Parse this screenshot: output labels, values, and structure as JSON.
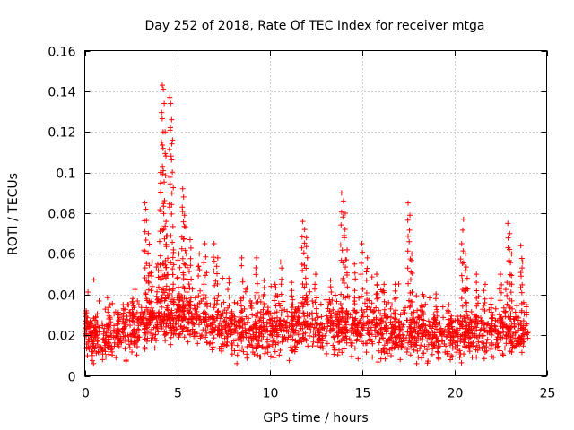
{
  "chart_data": {
    "type": "scatter",
    "title": "Day 252 of 2018, Rate Of TEC Index for receiver mtga",
    "xlabel": "GPS time / hours",
    "ylabel": "ROTI / TECUs",
    "xlim": [
      0,
      25
    ],
    "ylim": [
      0,
      0.16
    ],
    "xticks": [
      0,
      5,
      10,
      15,
      20,
      25
    ],
    "yticks": [
      0,
      0.02,
      0.04,
      0.06,
      0.08,
      0.1,
      0.12,
      0.14,
      0.16
    ],
    "xtick_labels": [
      "0",
      "5",
      "10",
      "15",
      "20",
      "25"
    ],
    "ytick_labels": [
      "0",
      "0.02",
      "0.04",
      "0.06",
      "0.08",
      "0.1",
      "0.12",
      "0.14",
      "0.16"
    ],
    "grid": true,
    "marker": "+",
    "color": "#ff0000",
    "baseline": [
      [
        0.0,
        0.022
      ],
      [
        1.0,
        0.018
      ],
      [
        2.0,
        0.02
      ],
      [
        3.0,
        0.024
      ],
      [
        4.0,
        0.028
      ],
      [
        5.0,
        0.03
      ],
      [
        6.0,
        0.027
      ],
      [
        7.0,
        0.024
      ],
      [
        8.0,
        0.022
      ],
      [
        9.0,
        0.022
      ],
      [
        10.0,
        0.022
      ],
      [
        11.0,
        0.023
      ],
      [
        12.0,
        0.024
      ],
      [
        13.0,
        0.022
      ],
      [
        14.0,
        0.024
      ],
      [
        15.0,
        0.024
      ],
      [
        16.0,
        0.022
      ],
      [
        17.0,
        0.021
      ],
      [
        18.0,
        0.021
      ],
      [
        19.0,
        0.02
      ],
      [
        20.0,
        0.02
      ],
      [
        21.0,
        0.02
      ],
      [
        22.0,
        0.02
      ],
      [
        23.0,
        0.021
      ],
      [
        24.0,
        0.018
      ]
    ],
    "spikes": [
      {
        "x": 0.1,
        "y": 0.031
      },
      {
        "x": 0.3,
        "y": 0.027
      },
      {
        "x": 0.6,
        "y": 0.029
      },
      {
        "x": 1.3,
        "y": 0.028
      },
      {
        "x": 1.8,
        "y": 0.03
      },
      {
        "x": 2.1,
        "y": 0.033
      },
      {
        "x": 2.6,
        "y": 0.038
      },
      {
        "x": 3.25,
        "y": 0.085
      },
      {
        "x": 3.3,
        "y": 0.082
      },
      {
        "x": 3.45,
        "y": 0.07
      },
      {
        "x": 3.65,
        "y": 0.056
      },
      {
        "x": 3.95,
        "y": 0.055
      },
      {
        "x": 4.1,
        "y": 0.1
      },
      {
        "x": 4.15,
        "y": 0.115
      },
      {
        "x": 4.2,
        "y": 0.143
      },
      {
        "x": 4.25,
        "y": 0.141
      },
      {
        "x": 4.3,
        "y": 0.134
      },
      {
        "x": 4.35,
        "y": 0.12
      },
      {
        "x": 4.4,
        "y": 0.076
      },
      {
        "x": 4.45,
        "y": 0.069
      },
      {
        "x": 4.6,
        "y": 0.137
      },
      {
        "x": 4.65,
        "y": 0.134
      },
      {
        "x": 4.7,
        "y": 0.126
      },
      {
        "x": 4.75,
        "y": 0.116
      },
      {
        "x": 4.8,
        "y": 0.062
      },
      {
        "x": 5.1,
        "y": 0.06
      },
      {
        "x": 5.3,
        "y": 0.092
      },
      {
        "x": 5.35,
        "y": 0.088
      },
      {
        "x": 5.4,
        "y": 0.079
      },
      {
        "x": 5.5,
        "y": 0.06
      },
      {
        "x": 5.7,
        "y": 0.067
      },
      {
        "x": 6.2,
        "y": 0.06
      },
      {
        "x": 6.5,
        "y": 0.065
      },
      {
        "x": 7.0,
        "y": 0.065
      },
      {
        "x": 7.2,
        "y": 0.058
      },
      {
        "x": 7.8,
        "y": 0.048
      },
      {
        "x": 8.5,
        "y": 0.058
      },
      {
        "x": 9.3,
        "y": 0.058
      },
      {
        "x": 9.7,
        "y": 0.047
      },
      {
        "x": 10.3,
        "y": 0.045
      },
      {
        "x": 10.6,
        "y": 0.056
      },
      {
        "x": 11.2,
        "y": 0.046
      },
      {
        "x": 11.8,
        "y": 0.076
      },
      {
        "x": 11.9,
        "y": 0.072
      },
      {
        "x": 12.0,
        "y": 0.068
      },
      {
        "x": 12.5,
        "y": 0.05
      },
      {
        "x": 13.3,
        "y": 0.047
      },
      {
        "x": 13.9,
        "y": 0.09
      },
      {
        "x": 14.0,
        "y": 0.086
      },
      {
        "x": 14.1,
        "y": 0.08
      },
      {
        "x": 14.2,
        "y": 0.062
      },
      {
        "x": 14.6,
        "y": 0.055
      },
      {
        "x": 15.0,
        "y": 0.065
      },
      {
        "x": 15.3,
        "y": 0.058
      },
      {
        "x": 15.8,
        "y": 0.05
      },
      {
        "x": 16.2,
        "y": 0.045
      },
      {
        "x": 16.8,
        "y": 0.045
      },
      {
        "x": 17.5,
        "y": 0.085
      },
      {
        "x": 17.6,
        "y": 0.079
      },
      {
        "x": 17.7,
        "y": 0.06
      },
      {
        "x": 18.3,
        "y": 0.04
      },
      {
        "x": 19.0,
        "y": 0.038
      },
      {
        "x": 19.7,
        "y": 0.035
      },
      {
        "x": 20.4,
        "y": 0.065
      },
      {
        "x": 20.5,
        "y": 0.077
      },
      {
        "x": 20.6,
        "y": 0.06
      },
      {
        "x": 20.7,
        "y": 0.048
      },
      {
        "x": 21.2,
        "y": 0.05
      },
      {
        "x": 21.6,
        "y": 0.042
      },
      {
        "x": 22.0,
        "y": 0.038
      },
      {
        "x": 22.5,
        "y": 0.05
      },
      {
        "x": 22.9,
        "y": 0.075
      },
      {
        "x": 23.0,
        "y": 0.07
      },
      {
        "x": 23.1,
        "y": 0.06
      },
      {
        "x": 23.6,
        "y": 0.064
      },
      {
        "x": 23.7,
        "y": 0.056
      },
      {
        "x": 23.9,
        "y": 0.035
      }
    ],
    "spread": 0.012,
    "num_points": 1900
  }
}
